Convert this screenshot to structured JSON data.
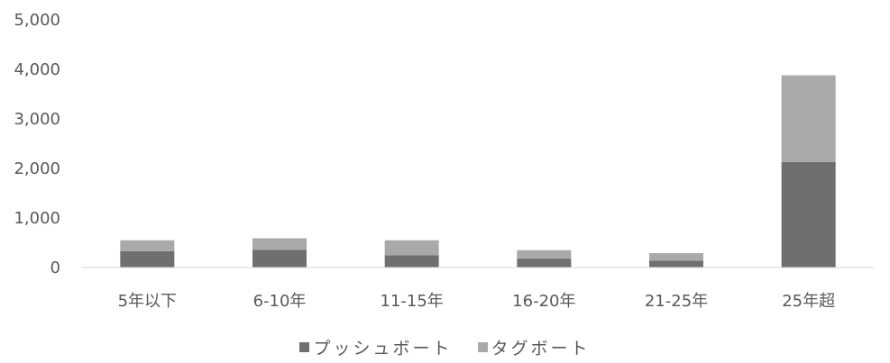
{
  "chart_data": {
    "type": "bar",
    "stacked": true,
    "categories": [
      "5年以下",
      "6-10年",
      "11-15年",
      "16-20年",
      "21-25年",
      "25年超"
    ],
    "series": [
      {
        "name": "プッシュボート",
        "color": "#6f6f6f",
        "values": [
          330,
          360,
          250,
          180,
          140,
          2130
        ]
      },
      {
        "name": "タグボート",
        "color": "#a9a9a9",
        "values": [
          220,
          230,
          300,
          170,
          150,
          1750
        ]
      }
    ],
    "ylim": [
      0,
      5000
    ],
    "yticks": [
      0,
      1000,
      2000,
      3000,
      4000,
      5000
    ],
    "ytick_labels": [
      "0",
      "1,000",
      "2,000",
      "3,000",
      "4,000",
      "5,000"
    ],
    "grid": false,
    "legend": "bottom"
  }
}
